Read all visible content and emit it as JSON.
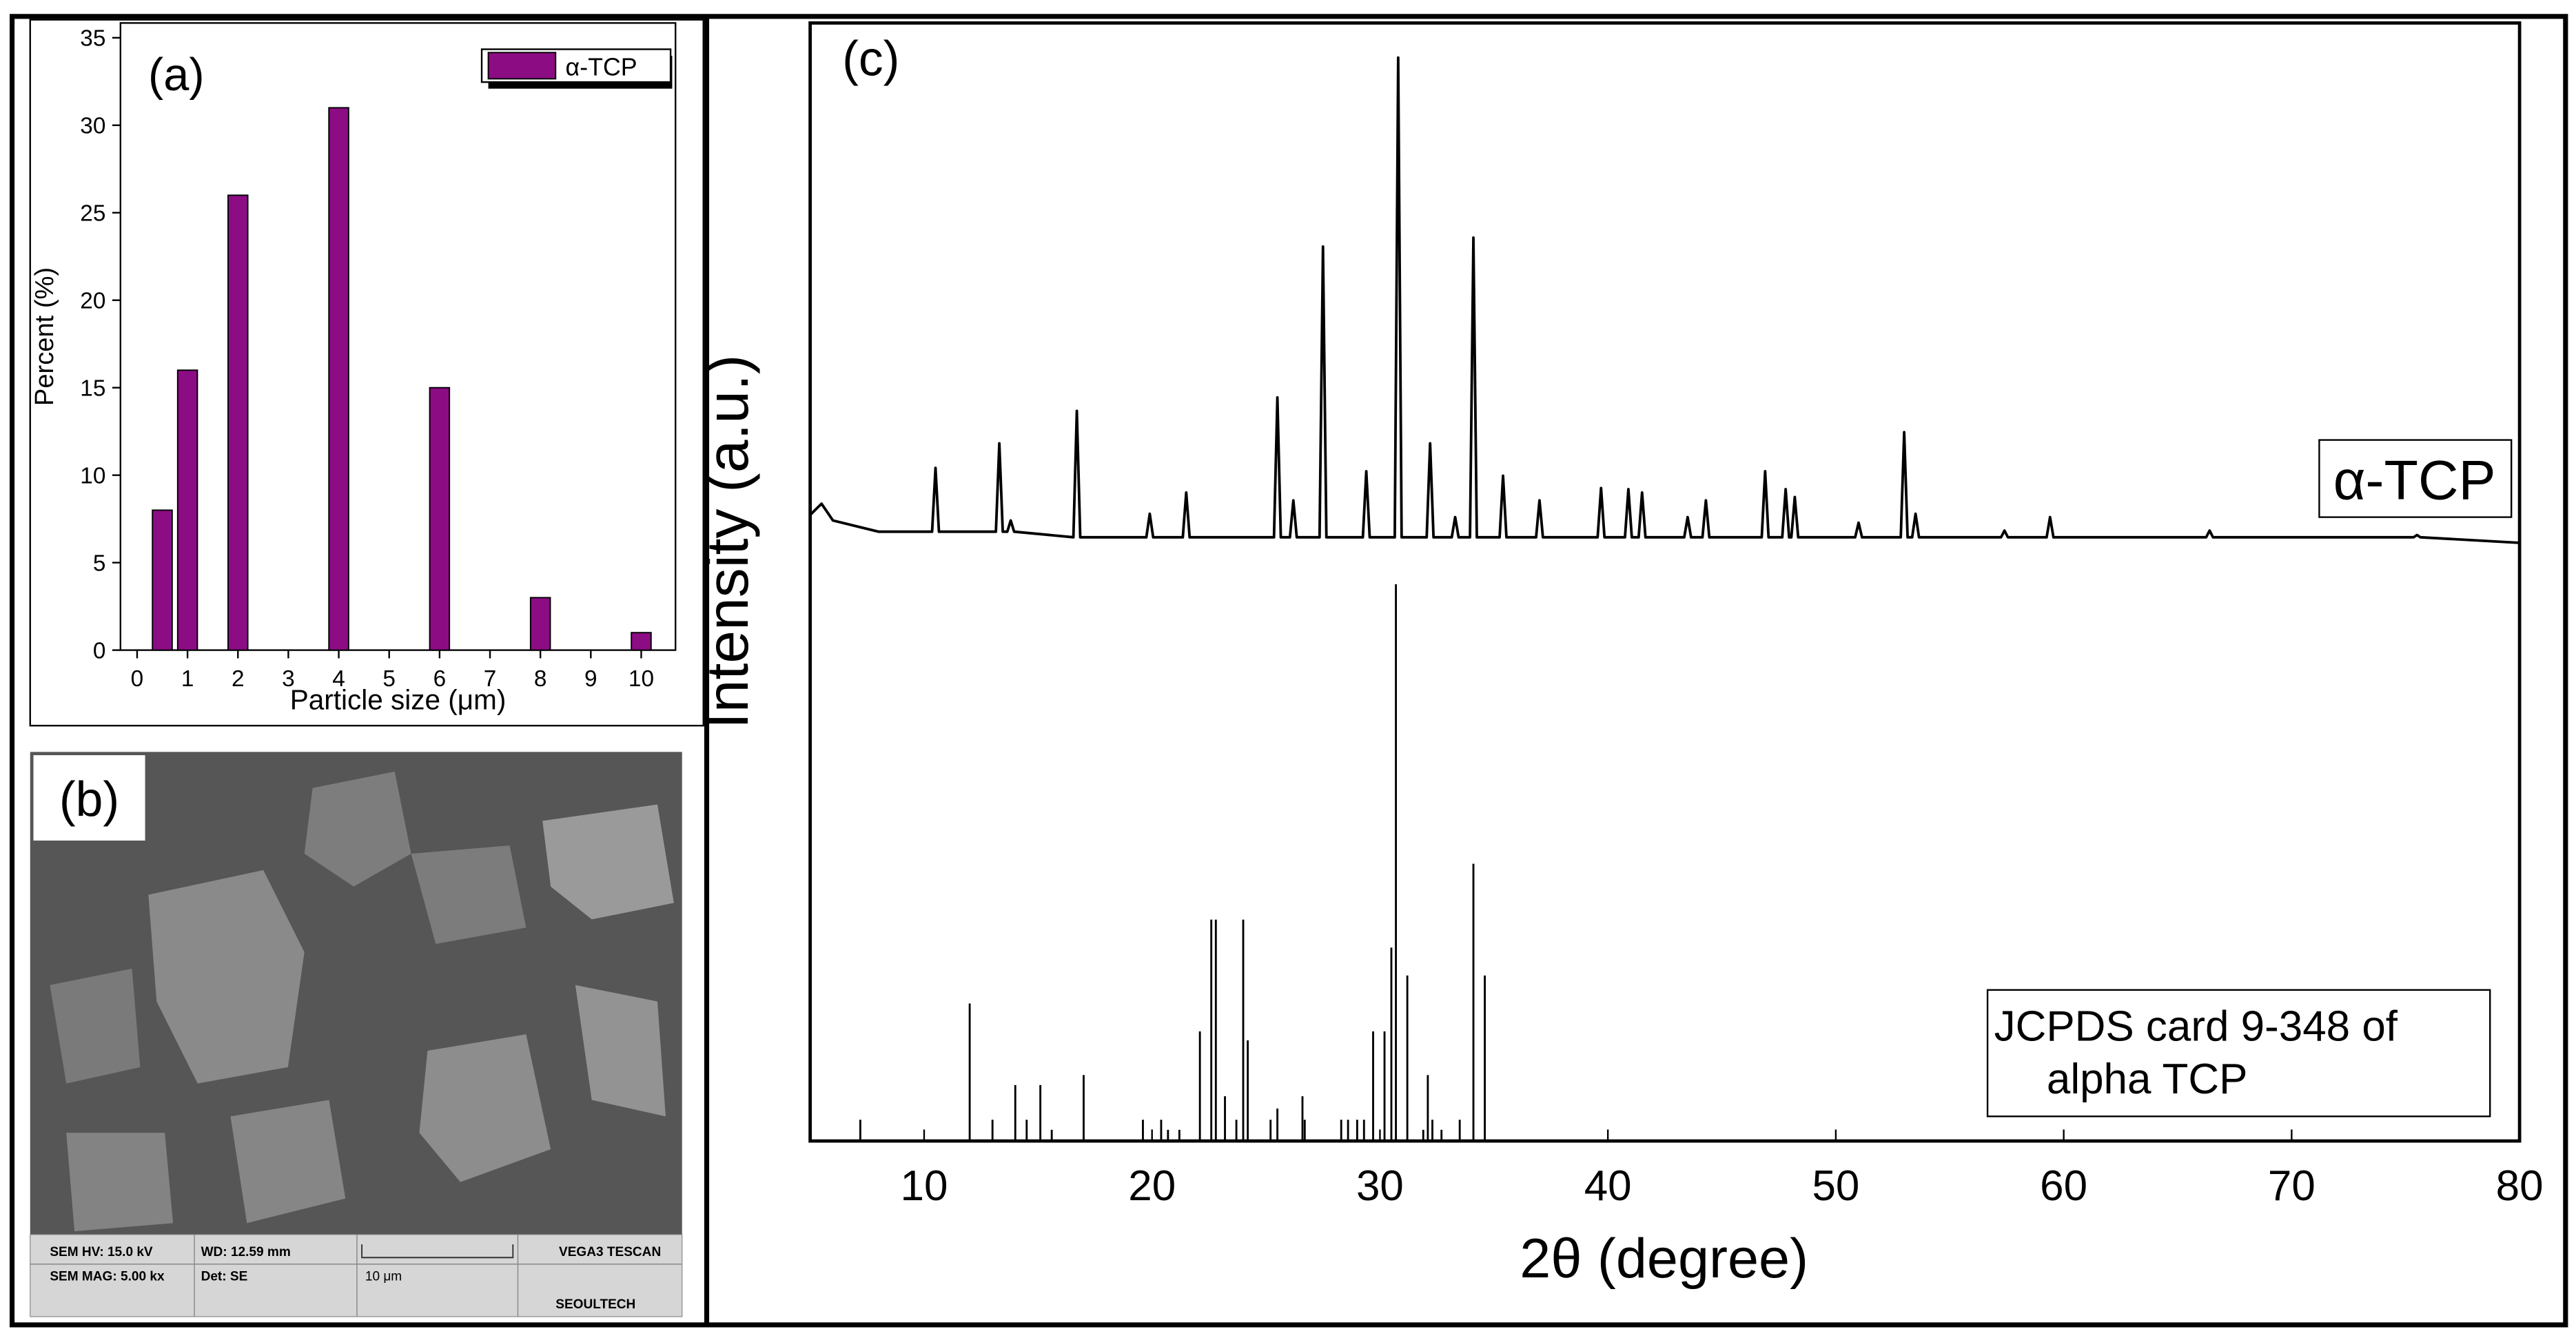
{
  "chart_data": [
    {
      "type": "bar",
      "panel_label": "(a)",
      "x_label": "Particle size (μm)",
      "y_label": "Percent (%)",
      "x": [
        0.5,
        1,
        2,
        4,
        6,
        8,
        10
      ],
      "series": [
        {
          "name": "α-TCP",
          "color": "#8c0c84",
          "values": [
            8,
            16,
            26,
            31,
            15,
            3,
            1
          ]
        }
      ],
      "xlim": [
        -0.33,
        10.68
      ],
      "xticks": [
        0,
        1,
        2,
        3,
        4,
        5,
        6,
        7,
        8,
        9,
        10
      ],
      "ylim": [
        0,
        35
      ],
      "yticks": [
        0,
        5,
        10,
        15,
        20,
        25,
        30,
        35
      ],
      "legend": "top-right"
    },
    {
      "type": "line",
      "panel_label": "(c)",
      "x_label": "2θ (degree)",
      "y_label": "Intensity (a.u.)",
      "xlim": [
        5,
        80
      ],
      "xticks": [
        10,
        20,
        30,
        40,
        50,
        60,
        70,
        80
      ],
      "ylim": [
        0,
        100
      ],
      "series": [
        {
          "name": "α-TCP",
          "color": "#000000",
          "mark": "line",
          "x": [
            5,
            5.5,
            6,
            8,
            10.35,
            10.5,
            10.65,
            13.15,
            13.3,
            13.45,
            13.65,
            13.8,
            13.95,
            16.55,
            16.7,
            16.85,
            19.75,
            19.9,
            20.05,
            21.35,
            21.5,
            21.65,
            25.35,
            25.5,
            25.65,
            26.05,
            26.2,
            26.35,
            27.35,
            27.5,
            27.65,
            29.25,
            29.4,
            29.55,
            30.65,
            30.8,
            30.95,
            32.05,
            32.2,
            32.35,
            33.15,
            33.3,
            33.45,
            33.95,
            34.1,
            34.25,
            35.25,
            35.4,
            35.55,
            36.85,
            37.0,
            37.15,
            39.55,
            39.7,
            39.85,
            40.75,
            40.9,
            41.05,
            41.35,
            41.5,
            41.65,
            43.35,
            43.5,
            43.65,
            44.15,
            44.3,
            44.45,
            46.75,
            46.9,
            47.05,
            47.65,
            47.8,
            47.95,
            48.05,
            48.2,
            48.35,
            50.85,
            51.0,
            51.15,
            52.85,
            53.0,
            53.15,
            53.35,
            53.5,
            53.65,
            57.25,
            57.4,
            57.55,
            59.25,
            59.4,
            59.55,
            66.25,
            66.4,
            66.55,
            75.35,
            75.5,
            75.65,
            80
          ],
          "values": [
            56,
            57,
            55.5,
            54.5,
            54.5,
            60.2,
            54.5,
            54.5,
            62.4,
            54.5,
            54.5,
            55.5,
            54.5,
            54,
            65.3,
            54,
            54,
            56.1,
            54,
            54,
            58,
            54,
            54,
            66.5,
            54,
            54,
            57.3,
            54,
            54,
            80,
            54,
            54,
            59.9,
            54,
            54,
            96.9,
            54,
            54,
            62.4,
            54,
            54,
            55.8,
            54,
            54,
            80.8,
            54,
            54,
            59.5,
            54,
            54,
            57.3,
            54,
            54,
            58.4,
            54,
            54,
            58.3,
            54,
            54,
            58,
            54,
            54,
            55.8,
            54,
            54,
            57.3,
            54,
            54,
            59.9,
            54,
            54,
            58.3,
            54,
            54,
            57.6,
            54,
            54,
            55.3,
            54,
            54,
            63.4,
            54,
            54,
            56.1,
            54,
            54,
            54.6,
            54,
            54,
            55.8,
            54,
            54,
            54.6,
            54,
            54,
            54.2,
            54,
            53.5
          ]
        },
        {
          "name": "JCPDS card 9-348 of alpha TCP",
          "color": "#000000",
          "mark": "stick",
          "x": [
            7.2,
            12.0,
            13.0,
            14.0,
            14.5,
            15.1,
            15.6,
            17.0,
            19.6,
            20.4,
            20.7,
            21.2,
            22.1,
            22.6,
            22.8,
            23.2,
            23.7,
            24.0,
            24.2,
            25.2,
            25.5,
            26.6,
            26.7,
            28.3,
            28.6,
            29.0,
            29.3,
            29.7,
            30.2,
            30.5,
            30.7,
            31.2,
            31.9,
            32.1,
            32.3,
            32.7,
            33.5,
            34.1,
            34.6
          ],
          "values": [
            1.9,
            12.3,
            1.9,
            5.0,
            1.9,
            5.0,
            1,
            5.9,
            1.9,
            1.9,
            1,
            1,
            9.8,
            19.8,
            19.8,
            4.0,
            1.9,
            19.8,
            9.0,
            1.9,
            2.9,
            4.0,
            1.9,
            1.9,
            1.9,
            1.9,
            1.9,
            9.8,
            9.8,
            17.3,
            49.8,
            14.8,
            1,
            5.9,
            1.9,
            1,
            1.9,
            24.8,
            14.8
          ]
        }
      ]
    }
  ],
  "panel_b": {
    "label": "(b)",
    "info": [
      "SEM HV: 15.0 kV",
      "WD: 12.59 mm",
      "VEGA3 TESCAN",
      "SEM MAG: 5.00 kx",
      "Det: SE",
      "10 μm",
      "SEOULTECH"
    ]
  }
}
